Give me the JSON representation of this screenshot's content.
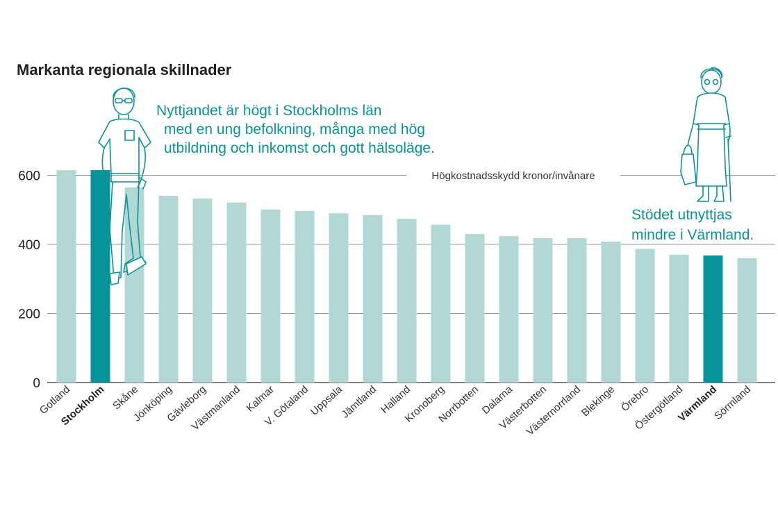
{
  "chart_data": {
    "type": "bar",
    "title": "Markanta regionala skillnader",
    "unit_label": "Högkostnadsskydd kronor/invånare",
    "ylim": [
      0,
      640
    ],
    "yticks": [
      0,
      200,
      400,
      600
    ],
    "categories": [
      "Gotland",
      "Stockholm",
      "Skåne",
      "Jönköping",
      "Gävleborg",
      "Västmanland",
      "Kalmar",
      "V. Götaland",
      "Uppsala",
      "Jämtland",
      "Halland",
      "Kronoberg",
      "Norrbotten",
      "Dalarna",
      "Västerbotten",
      "Västernorrland",
      "Blekinge",
      "Örebro",
      "Östergötland",
      "Värmland",
      "Sörmland"
    ],
    "values": [
      615,
      615,
      565,
      541,
      533,
      521,
      501,
      497,
      490,
      485,
      474,
      457,
      430,
      424,
      418,
      418,
      408,
      387,
      370,
      368,
      360
    ],
    "highlight": [
      "Stockholm",
      "Värmland"
    ],
    "annotations": [
      {
        "lines": [
          "Nyttjandet är högt i Stockholms län",
          "med en ung befolkning, många med hög",
          "utbildning och inkomst och gott hälsoläge."
        ]
      },
      {
        "lines": [
          "Stödet utnyttjas",
          "mindre i Värmland."
        ]
      }
    ]
  },
  "colors": {
    "bar": "#b2d8d6",
    "bar_highlight": "#06949a",
    "annotation": "#0a9396",
    "grid": "#9a9a9a"
  },
  "icons": [
    "young-man-illustration",
    "elderly-woman-illustration"
  ]
}
